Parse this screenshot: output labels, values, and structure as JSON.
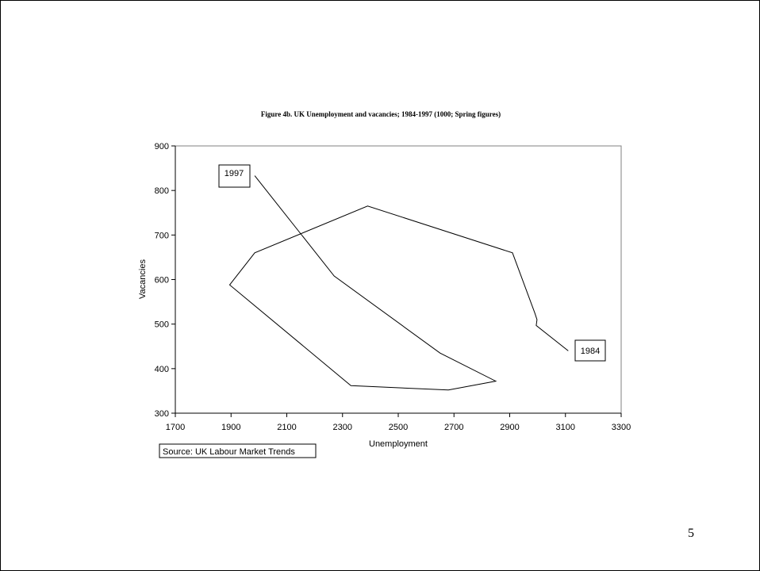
{
  "page": {
    "page_number": "5"
  },
  "chart_data": {
    "type": "line",
    "title": "Figure 4b. UK Unemployment and vacancies; 1984-1997 (1000; Spring figures)",
    "xlabel": "Unemployment",
    "ylabel": "Vacancies",
    "xlim": [
      1700,
      3300
    ],
    "ylim": [
      300,
      900
    ],
    "x_ticks": [
      "1700",
      "1900",
      "2100",
      "2300",
      "2500",
      "2700",
      "2900",
      "3100",
      "3300"
    ],
    "y_ticks": [
      "300",
      "400",
      "500",
      "600",
      "700",
      "800",
      "900"
    ],
    "grid": false,
    "series": [
      {
        "x": [
          3110,
          2995,
          2998,
          2990,
          2910,
          2390,
          1985,
          1895,
          2330,
          2680,
          2850,
          2650,
          2270,
          1985
        ],
        "y": [
          440,
          497,
          510,
          525,
          660,
          765,
          660,
          588,
          362,
          352,
          372,
          435,
          608,
          833
        ]
      }
    ],
    "annotations": [
      {
        "text": "1984",
        "x": 3110,
        "y": 440
      },
      {
        "text": "1997",
        "x": 1985,
        "y": 833
      }
    ],
    "source_note": "Source: UK Labour Market Trends"
  }
}
